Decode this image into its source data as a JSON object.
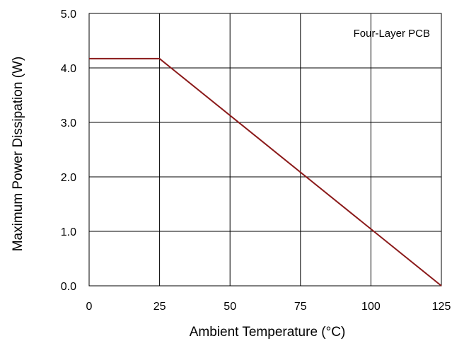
{
  "chart_data": {
    "type": "line",
    "title": "",
    "annotation": "Four-Layer PCB",
    "xlabel": "Ambient Temperature (°C)",
    "ylabel": "Maximum Power Dissipation (W)",
    "xlim": [
      0,
      125
    ],
    "ylim": [
      0,
      5
    ],
    "x_ticks": [
      0,
      25,
      50,
      75,
      100,
      125
    ],
    "y_ticks": [
      0,
      1,
      2,
      3,
      4,
      5
    ],
    "x_tick_labels": [
      "0",
      "25",
      "50",
      "75",
      "100",
      "125"
    ],
    "y_tick_labels": [
      "0.0",
      "1.0",
      "2.0",
      "3.0",
      "4.0",
      "5.0"
    ],
    "grid": true,
    "series": [
      {
        "color": "#8b1a1a",
        "x": [
          0,
          25,
          125
        ],
        "y": [
          4.17,
          4.17,
          0
        ]
      }
    ]
  }
}
